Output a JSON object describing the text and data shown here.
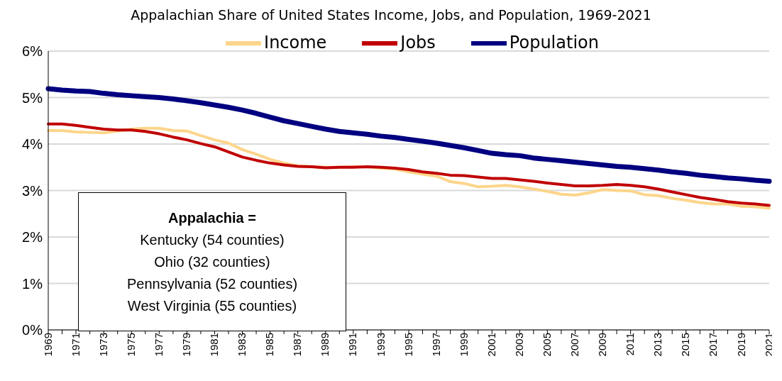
{
  "chart_data": {
    "type": "line",
    "title": "Appalachian Share of United States Income, Jobs, and Population, 1969-2021",
    "categories": [
      "1969",
      null,
      "1971",
      null,
      "1973",
      null,
      "1975",
      null,
      "1977",
      null,
      "1979",
      null,
      "1981",
      null,
      "1983",
      null,
      "1985",
      null,
      "1987",
      null,
      "1989",
      null,
      "1991",
      null,
      "1993",
      null,
      "1995",
      null,
      "1997",
      null,
      "1999",
      null,
      "2001",
      null,
      "2003",
      null,
      "2005",
      null,
      "2007",
      null,
      "2009",
      null,
      "2011",
      null,
      "2013",
      null,
      "2015",
      null,
      "2017",
      null,
      "2019",
      null,
      "2021"
    ],
    "series": [
      {
        "name": "Income",
        "color": "#fdd58a",
        "values": [
          4.29,
          4.29,
          4.26,
          4.25,
          4.24,
          4.28,
          4.32,
          4.34,
          4.34,
          4.29,
          4.28,
          4.18,
          4.09,
          4.02,
          3.88,
          3.78,
          3.67,
          3.59,
          3.53,
          3.51,
          3.5,
          3.5,
          3.51,
          3.51,
          3.48,
          3.46,
          3.4,
          3.35,
          3.31,
          3.19,
          3.15,
          3.08,
          3.09,
          3.11,
          3.08,
          3.03,
          2.98,
          2.92,
          2.9,
          2.95,
          3.02,
          3.0,
          2.99,
          2.91,
          2.89,
          2.83,
          2.79,
          2.74,
          2.71,
          2.71,
          2.66,
          2.65,
          2.62
        ]
      },
      {
        "name": "Jobs",
        "color": "#c00000",
        "values": [
          4.43,
          4.43,
          4.4,
          4.36,
          4.32,
          4.3,
          4.3,
          4.27,
          4.22,
          4.15,
          4.09,
          4.01,
          3.94,
          3.83,
          3.72,
          3.65,
          3.59,
          3.55,
          3.52,
          3.51,
          3.49,
          3.5,
          3.5,
          3.51,
          3.5,
          3.48,
          3.45,
          3.4,
          3.37,
          3.33,
          3.32,
          3.29,
          3.26,
          3.26,
          3.23,
          3.2,
          3.16,
          3.13,
          3.1,
          3.1,
          3.11,
          3.13,
          3.11,
          3.08,
          3.03,
          2.97,
          2.91,
          2.85,
          2.81,
          2.76,
          2.73,
          2.71,
          2.68
        ]
      },
      {
        "name": "Population",
        "color": "#000080",
        "values": [
          5.19,
          5.16,
          5.14,
          5.13,
          5.09,
          5.06,
          5.04,
          5.02,
          5.0,
          4.97,
          4.93,
          4.89,
          4.84,
          4.79,
          4.73,
          4.66,
          4.58,
          4.5,
          4.44,
          4.38,
          4.32,
          4.27,
          4.24,
          4.21,
          4.17,
          4.14,
          4.1,
          4.06,
          4.02,
          3.97,
          3.92,
          3.86,
          3.8,
          3.77,
          3.75,
          3.7,
          3.67,
          3.64,
          3.61,
          3.58,
          3.55,
          3.52,
          3.5,
          3.47,
          3.44,
          3.4,
          3.37,
          3.33,
          3.3,
          3.27,
          3.25,
          3.22,
          3.2
        ]
      }
    ],
    "ylim": [
      0,
      6
    ],
    "yticks": [
      {
        "value": 0,
        "label": "0%"
      },
      {
        "value": 1,
        "label": "1%"
      },
      {
        "value": 2,
        "label": "2%"
      },
      {
        "value": 3,
        "label": "3%"
      },
      {
        "value": 4,
        "label": "4%"
      },
      {
        "value": 5,
        "label": "5%"
      },
      {
        "value": 6,
        "label": "6%"
      }
    ],
    "grid": "y",
    "legend": "top",
    "marker": "none",
    "line_style": "solid",
    "annotations": [
      "Appalachia =",
      "Kentucky (54 counties)",
      "Ohio (32 counties)",
      "Pennsylvania (52 counties)",
      "West Virginia (55 counties)"
    ]
  }
}
